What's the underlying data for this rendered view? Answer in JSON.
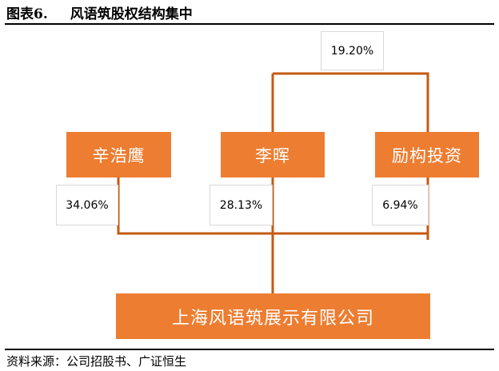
{
  "title": {
    "label": "图表6.",
    "text": "风语筑股权结构集中"
  },
  "shareholders": [
    {
      "name": "辛浩鹰",
      "stake": "34.06%"
    },
    {
      "name": "李晖",
      "stake": "28.13%"
    },
    {
      "name": "励构投资",
      "stake": "6.94%"
    }
  ],
  "top_stake": "19.20%",
  "company": "上海风语筑展示有限公司",
  "source": "资料来源：公司招股书、广证恒生",
  "colors": {
    "box": "#ED7D31",
    "line": "#C55A11"
  }
}
